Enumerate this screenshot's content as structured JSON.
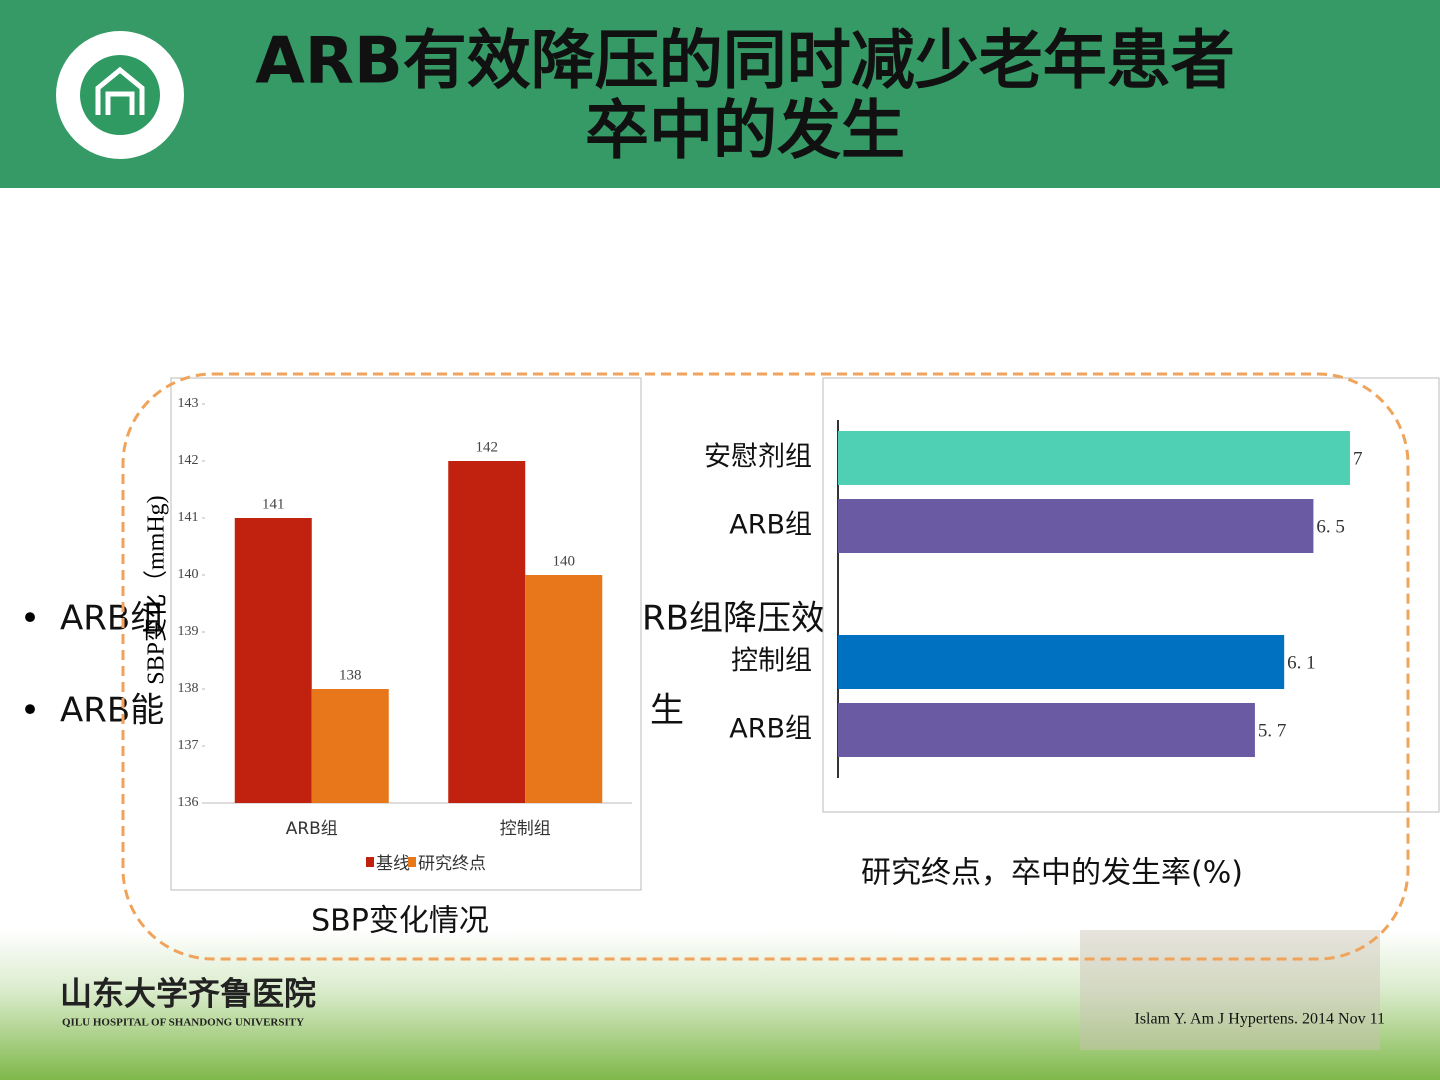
{
  "header": {
    "title_lines": [
      "ARB有效降压的同时减少老年患者",
      "卒中的发生"
    ]
  },
  "bullets": [
    [
      "ARB组",
      "RB组降压效"
    ],
    [
      "ARB能",
      "生"
    ]
  ],
  "chart_data": [
    {
      "type": "bar",
      "categories": [
        "ARB组",
        "控制组"
      ],
      "series": [
        {
          "name": "基线",
          "color": "#c0220f",
          "values": [
            141,
            142
          ]
        },
        {
          "name": "研究终点",
          "color": "#e8761a",
          "values": [
            138,
            140
          ]
        }
      ],
      "ylabel": "SBP变化（mmHg)",
      "ylim": [
        136,
        143
      ],
      "yticks": [
        136,
        137,
        138,
        139,
        140,
        141,
        142,
        143
      ],
      "legend": "bottom",
      "caption": "SBP变化情况"
    },
    {
      "type": "hbar",
      "categories": [
        "安慰剂组",
        "ARB组",
        "控制组",
        "ARB组"
      ],
      "values": [
        7,
        6.5,
        6.1,
        5.7
      ],
      "value_labels": [
        "7",
        "6. 5",
        "6. 1",
        "5. 7"
      ],
      "colors": [
        "#4fd0b5",
        "#6a59a3",
        "#0070c0",
        "#6a59a3"
      ],
      "xlim": [
        0,
        7
      ],
      "caption": "研究终点，卒中的发生率(%)"
    }
  ],
  "footer": {
    "logo_cn": "山东大学齐鲁医院",
    "logo_en": "QILU HOSPITAL OF SHANDONG UNIVERSITY",
    "citation": "Islam Y. Am J Hypertens. 2014 Nov 11"
  }
}
